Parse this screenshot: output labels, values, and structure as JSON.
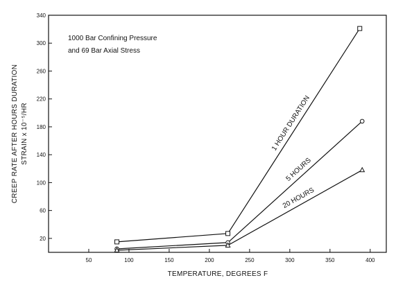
{
  "chart_data": {
    "type": "line",
    "title": "",
    "annotation": [
      "1000 Bar Confining Pressure",
      "and 69 Bar Axial Stress"
    ],
    "xlabel": "TEMPERATURE, DEGREES F",
    "ylabel": [
      "CREEP RATE AFTER HOURS DURATION",
      "STRAIN x 10⁻⁵/HR"
    ],
    "xlim": [
      0,
      420
    ],
    "ylim": [
      0,
      340
    ],
    "xticks": [
      50,
      100,
      150,
      200,
      250,
      300,
      350,
      400
    ],
    "yticks": [
      20,
      60,
      100,
      140,
      180,
      220,
      260,
      300,
      340
    ],
    "grid": false,
    "series": [
      {
        "name": "1 HOUR DURATION",
        "marker": "square",
        "x": [
          85,
          223,
          387
        ],
        "y": [
          15,
          27,
          321
        ]
      },
      {
        "name": "5 HOURS",
        "marker": "circle",
        "x": [
          85,
          223,
          390
        ],
        "y": [
          5,
          14,
          188
        ]
      },
      {
        "name": "20 HOURS",
        "marker": "triangle",
        "x": [
          85,
          223,
          390
        ],
        "y": [
          3,
          10,
          118
        ]
      }
    ]
  }
}
